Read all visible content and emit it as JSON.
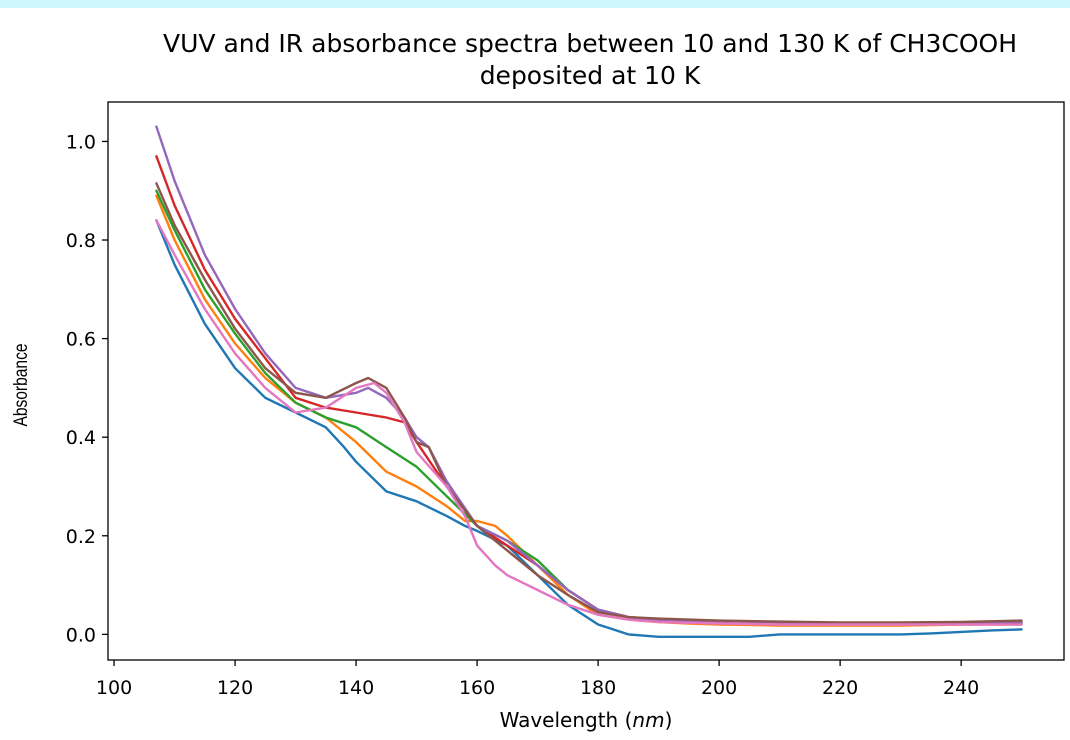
{
  "colors": {
    "top_strip": "#ccf6fc",
    "series": [
      "#1f77b4",
      "#ff7f0e",
      "#2ca02c",
      "#d62728",
      "#9467bd",
      "#8c564b",
      "#e377c2"
    ]
  },
  "chart_data": {
    "type": "line",
    "title": "VUV and IR absorbance spectra between 10 and 130 K of CH3COOH deposited at 10 K",
    "title_lines": [
      "VUV and IR absorbance spectra between 10 and 130 K of CH3COOH",
      "deposited at 10 K"
    ],
    "xlabel": "Wavelength (nm)",
    "xlabel_parts": {
      "text": "Wavelength (",
      "unit": "nm",
      "close": ")"
    },
    "ylabel": "Absorbance",
    "xlim": [
      99,
      257
    ],
    "ylim": [
      -0.052,
      1.08
    ],
    "xticks": [
      100,
      120,
      140,
      160,
      180,
      200,
      220,
      240
    ],
    "xtick_labels": [
      "100",
      "120",
      "140",
      "160",
      "180",
      "200",
      "220",
      "240"
    ],
    "yticks": [
      0.0,
      0.2,
      0.4,
      0.6,
      0.8,
      1.0
    ],
    "ytick_labels": [
      "0.0",
      "0.2",
      "0.4",
      "0.6",
      "0.8",
      "1.0"
    ],
    "grid": false,
    "legend": "none",
    "series": [
      {
        "color": "#1f77b4",
        "points": [
          [
            107,
            0.84
          ],
          [
            110,
            0.75
          ],
          [
            115,
            0.63
          ],
          [
            120,
            0.54
          ],
          [
            125,
            0.48
          ],
          [
            130,
            0.45
          ],
          [
            135,
            0.42
          ],
          [
            138,
            0.38
          ],
          [
            140,
            0.35
          ],
          [
            145,
            0.29
          ],
          [
            150,
            0.27
          ],
          [
            155,
            0.24
          ],
          [
            158,
            0.22
          ],
          [
            160,
            0.21
          ],
          [
            165,
            0.18
          ],
          [
            170,
            0.12
          ],
          [
            175,
            0.06
          ],
          [
            180,
            0.02
          ],
          [
            185,
            0.0
          ],
          [
            190,
            -0.005
          ],
          [
            195,
            -0.005
          ],
          [
            200,
            -0.005
          ],
          [
            205,
            -0.005
          ],
          [
            210,
            0.0
          ],
          [
            215,
            0.0
          ],
          [
            220,
            0.0
          ],
          [
            225,
            0.0
          ],
          [
            230,
            0.0
          ],
          [
            235,
            0.002
          ],
          [
            240,
            0.005
          ],
          [
            245,
            0.008
          ],
          [
            250,
            0.01
          ]
        ]
      },
      {
        "color": "#ff7f0e",
        "points": [
          [
            107,
            0.89
          ],
          [
            110,
            0.8
          ],
          [
            115,
            0.68
          ],
          [
            120,
            0.59
          ],
          [
            125,
            0.52
          ],
          [
            130,
            0.47
          ],
          [
            135,
            0.44
          ],
          [
            140,
            0.39
          ],
          [
            145,
            0.33
          ],
          [
            150,
            0.3
          ],
          [
            155,
            0.26
          ],
          [
            158,
            0.23
          ],
          [
            160,
            0.23
          ],
          [
            163,
            0.22
          ],
          [
            165,
            0.2
          ],
          [
            170,
            0.14
          ],
          [
            175,
            0.08
          ],
          [
            180,
            0.04
          ],
          [
            185,
            0.03
          ],
          [
            190,
            0.025
          ],
          [
            195,
            0.022
          ],
          [
            200,
            0.02
          ],
          [
            210,
            0.018
          ],
          [
            220,
            0.018
          ],
          [
            230,
            0.018
          ],
          [
            240,
            0.02
          ],
          [
            250,
            0.02
          ]
        ]
      },
      {
        "color": "#2ca02c",
        "points": [
          [
            107,
            0.9
          ],
          [
            110,
            0.82
          ],
          [
            115,
            0.7
          ],
          [
            120,
            0.61
          ],
          [
            125,
            0.53
          ],
          [
            130,
            0.47
          ],
          [
            135,
            0.44
          ],
          [
            140,
            0.42
          ],
          [
            145,
            0.38
          ],
          [
            150,
            0.34
          ],
          [
            155,
            0.28
          ],
          [
            160,
            0.22
          ],
          [
            165,
            0.19
          ],
          [
            170,
            0.15
          ],
          [
            175,
            0.09
          ],
          [
            180,
            0.05
          ],
          [
            185,
            0.035
          ],
          [
            190,
            0.03
          ],
          [
            195,
            0.028
          ],
          [
            200,
            0.027
          ],
          [
            210,
            0.025
          ],
          [
            220,
            0.023
          ],
          [
            230,
            0.022
          ],
          [
            240,
            0.022
          ],
          [
            250,
            0.022
          ]
        ]
      },
      {
        "color": "#d62728",
        "points": [
          [
            107,
            0.97
          ],
          [
            110,
            0.87
          ],
          [
            115,
            0.74
          ],
          [
            120,
            0.64
          ],
          [
            125,
            0.56
          ],
          [
            130,
            0.48
          ],
          [
            135,
            0.46
          ],
          [
            140,
            0.45
          ],
          [
            145,
            0.44
          ],
          [
            148,
            0.43
          ],
          [
            150,
            0.39
          ],
          [
            155,
            0.3
          ],
          [
            160,
            0.22
          ],
          [
            165,
            0.18
          ],
          [
            170,
            0.14
          ],
          [
            175,
            0.09
          ],
          [
            180,
            0.05
          ],
          [
            185,
            0.035
          ],
          [
            190,
            0.03
          ],
          [
            195,
            0.028
          ],
          [
            200,
            0.027
          ],
          [
            210,
            0.025
          ],
          [
            220,
            0.023
          ],
          [
            230,
            0.022
          ],
          [
            240,
            0.022
          ],
          [
            250,
            0.025
          ]
        ]
      },
      {
        "color": "#9467bd",
        "points": [
          [
            107,
            1.03
          ],
          [
            110,
            0.92
          ],
          [
            115,
            0.77
          ],
          [
            120,
            0.66
          ],
          [
            125,
            0.57
          ],
          [
            130,
            0.5
          ],
          [
            135,
            0.48
          ],
          [
            140,
            0.49
          ],
          [
            142,
            0.5
          ],
          [
            145,
            0.48
          ],
          [
            148,
            0.44
          ],
          [
            150,
            0.4
          ],
          [
            152,
            0.38
          ],
          [
            155,
            0.31
          ],
          [
            160,
            0.22
          ],
          [
            165,
            0.19
          ],
          [
            170,
            0.14
          ],
          [
            175,
            0.09
          ],
          [
            180,
            0.05
          ],
          [
            185,
            0.035
          ],
          [
            190,
            0.03
          ],
          [
            195,
            0.028
          ],
          [
            200,
            0.027
          ],
          [
            210,
            0.025
          ],
          [
            220,
            0.023
          ],
          [
            230,
            0.022
          ],
          [
            240,
            0.023
          ],
          [
            250,
            0.025
          ]
        ]
      },
      {
        "color": "#8c564b",
        "points": [
          [
            107,
            0.915
          ],
          [
            110,
            0.83
          ],
          [
            115,
            0.72
          ],
          [
            120,
            0.62
          ],
          [
            125,
            0.54
          ],
          [
            130,
            0.49
          ],
          [
            135,
            0.48
          ],
          [
            140,
            0.51
          ],
          [
            142,
            0.52
          ],
          [
            145,
            0.5
          ],
          [
            148,
            0.44
          ],
          [
            150,
            0.39
          ],
          [
            152,
            0.38
          ],
          [
            155,
            0.3
          ],
          [
            160,
            0.22
          ],
          [
            165,
            0.17
          ],
          [
            170,
            0.12
          ],
          [
            175,
            0.08
          ],
          [
            180,
            0.045
          ],
          [
            185,
            0.035
          ],
          [
            190,
            0.032
          ],
          [
            195,
            0.03
          ],
          [
            200,
            0.028
          ],
          [
            210,
            0.026
          ],
          [
            220,
            0.024
          ],
          [
            230,
            0.024
          ],
          [
            240,
            0.025
          ],
          [
            250,
            0.028
          ]
        ]
      },
      {
        "color": "#e377c2",
        "points": [
          [
            107,
            0.84
          ],
          [
            110,
            0.77
          ],
          [
            115,
            0.66
          ],
          [
            120,
            0.57
          ],
          [
            125,
            0.5
          ],
          [
            130,
            0.45
          ],
          [
            135,
            0.46
          ],
          [
            140,
            0.5
          ],
          [
            143,
            0.51
          ],
          [
            145,
            0.49
          ],
          [
            148,
            0.43
          ],
          [
            150,
            0.37
          ],
          [
            155,
            0.3
          ],
          [
            158,
            0.24
          ],
          [
            160,
            0.18
          ],
          [
            163,
            0.14
          ],
          [
            165,
            0.12
          ],
          [
            170,
            0.09
          ],
          [
            175,
            0.06
          ],
          [
            180,
            0.04
          ],
          [
            185,
            0.03
          ],
          [
            190,
            0.025
          ],
          [
            200,
            0.022
          ],
          [
            210,
            0.02
          ],
          [
            220,
            0.02
          ],
          [
            230,
            0.02
          ],
          [
            240,
            0.02
          ],
          [
            250,
            0.02
          ]
        ]
      }
    ]
  }
}
